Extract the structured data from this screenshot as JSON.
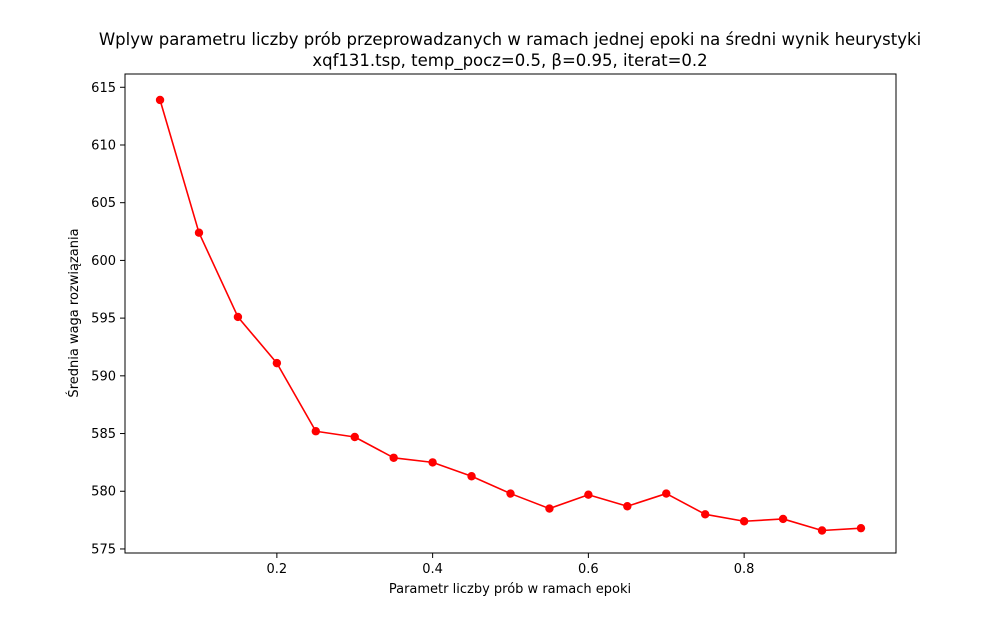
{
  "chart_data": {
    "type": "line",
    "title": "Wplyw parametru liczby prób przeprowadzanych w ramach jednej epoki na średni wynik heurystyki",
    "subtitle": "xqf131.tsp, temp_pocz=0.5, β=0.95, iterat=0.2",
    "xlabel": "Parametr liczby prób w ramach epoki",
    "ylabel": "Średnia waga rozwiązania",
    "xlim": [
      0.005,
      0.995
    ],
    "ylim": [
      574.65,
      616.15
    ],
    "x_ticks": [
      0.2,
      0.4,
      0.6,
      0.8
    ],
    "x_tick_labels": [
      "0.2",
      "0.4",
      "0.6",
      "0.8"
    ],
    "y_ticks": [
      575,
      580,
      585,
      590,
      595,
      600,
      605,
      610,
      615
    ],
    "y_tick_labels": [
      "575",
      "580",
      "585",
      "590",
      "595",
      "600",
      "605",
      "610",
      "615"
    ],
    "grid": false,
    "legend": "none",
    "series": [
      {
        "color": "#ff0000",
        "marker": "circle",
        "x": [
          0.05,
          0.1,
          0.15,
          0.2,
          0.25,
          0.3,
          0.35,
          0.4,
          0.45,
          0.5,
          0.55,
          0.6,
          0.65,
          0.7,
          0.75,
          0.8,
          0.85,
          0.9,
          0.95
        ],
        "values": [
          613.9,
          602.4,
          595.1,
          591.1,
          585.2,
          584.7,
          582.9,
          582.5,
          581.3,
          579.8,
          578.5,
          579.7,
          578.7,
          579.8,
          578.0,
          577.4,
          577.6,
          576.6,
          576.8
        ]
      }
    ]
  }
}
